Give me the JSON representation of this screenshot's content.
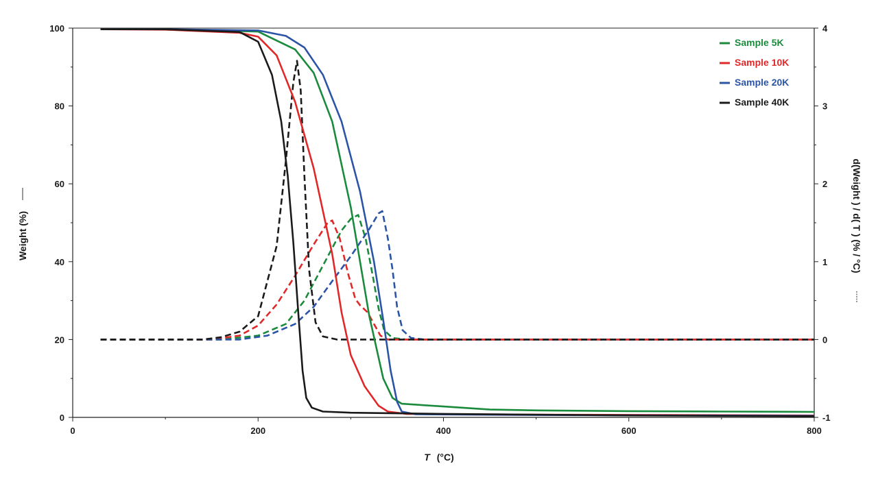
{
  "chart_data": {
    "type": "line",
    "xlabel_symbol": "T",
    "xlabel_unit": "(°C)",
    "ylabel_left": "Weight  (%)",
    "ylabel_right": "d(Weight ) / d( T )  (% / °C)",
    "xlim": [
      0,
      800
    ],
    "ylim_left": [
      0,
      100
    ],
    "ylim_right": [
      -1,
      4
    ],
    "x_ticks": [
      "0",
      "200",
      "400",
      "600",
      "800"
    ],
    "y_left_ticks": [
      "0",
      "20",
      "40",
      "60",
      "80",
      "100"
    ],
    "y_right_ticks": [
      "-1",
      "0",
      "1",
      "2",
      "3",
      "4"
    ],
    "grid": false,
    "legend_position": "top-right",
    "series": [
      {
        "name": "Sample 5K",
        "color": "#1a8a3c",
        "weight": [
          [
            30,
            99.7
          ],
          [
            100,
            99.7
          ],
          [
            200,
            99.1
          ],
          [
            240,
            94.5
          ],
          [
            260,
            88.5
          ],
          [
            280,
            76
          ],
          [
            300,
            54
          ],
          [
            320,
            26
          ],
          [
            335,
            10
          ],
          [
            345,
            5
          ],
          [
            355,
            3.5
          ],
          [
            400,
            2.8
          ],
          [
            450,
            2
          ],
          [
            500,
            1.8
          ],
          [
            600,
            1.6
          ],
          [
            700,
            1.5
          ],
          [
            800,
            1.4
          ]
        ],
        "derivative": [
          [
            30,
            0
          ],
          [
            160,
            0
          ],
          [
            200,
            0.05
          ],
          [
            230,
            0.2
          ],
          [
            250,
            0.5
          ],
          [
            270,
            0.95
          ],
          [
            290,
            1.4
          ],
          [
            300,
            1.55
          ],
          [
            308,
            1.6
          ],
          [
            316,
            1.3
          ],
          [
            324,
            0.8
          ],
          [
            330,
            0.4
          ],
          [
            336,
            0.12
          ],
          [
            345,
            0.02
          ],
          [
            360,
            0
          ],
          [
            800,
            0
          ]
        ]
      },
      {
        "name": "Sample 10K",
        "color": "#e02828",
        "weight": [
          [
            30,
            99.7
          ],
          [
            100,
            99.6
          ],
          [
            180,
            98.8
          ],
          [
            200,
            97.8
          ],
          [
            220,
            93
          ],
          [
            240,
            81
          ],
          [
            260,
            64
          ],
          [
            280,
            42
          ],
          [
            290,
            27
          ],
          [
            300,
            16
          ],
          [
            315,
            8
          ],
          [
            330,
            3
          ],
          [
            340,
            1.5
          ],
          [
            360,
            0.9
          ],
          [
            500,
            0.7
          ],
          [
            800,
            0.5
          ]
        ],
        "derivative": [
          [
            30,
            0
          ],
          [
            150,
            0
          ],
          [
            180,
            0.05
          ],
          [
            200,
            0.18
          ],
          [
            220,
            0.45
          ],
          [
            240,
            0.82
          ],
          [
            260,
            1.22
          ],
          [
            275,
            1.5
          ],
          [
            280,
            1.53
          ],
          [
            288,
            1.3
          ],
          [
            297,
            0.85
          ],
          [
            305,
            0.52
          ],
          [
            310,
            0.44
          ],
          [
            318,
            0.35
          ],
          [
            325,
            0.2
          ],
          [
            332,
            0.05
          ],
          [
            340,
            0
          ],
          [
            800,
            0
          ]
        ]
      },
      {
        "name": "Sample 20K",
        "color": "#2c54a6",
        "weight": [
          [
            30,
            99.7
          ],
          [
            100,
            99.7
          ],
          [
            200,
            99.4
          ],
          [
            230,
            98
          ],
          [
            250,
            95
          ],
          [
            270,
            88
          ],
          [
            290,
            76
          ],
          [
            310,
            58
          ],
          [
            325,
            40
          ],
          [
            335,
            25
          ],
          [
            343,
            12
          ],
          [
            350,
            4
          ],
          [
            355,
            1.5
          ],
          [
            370,
            0.8
          ],
          [
            500,
            0.6
          ],
          [
            800,
            0.4
          ]
        ],
        "derivative": [
          [
            30,
            0
          ],
          [
            180,
            0
          ],
          [
            210,
            0.05
          ],
          [
            240,
            0.2
          ],
          [
            260,
            0.42
          ],
          [
            280,
            0.75
          ],
          [
            300,
            1.07
          ],
          [
            320,
            1.42
          ],
          [
            330,
            1.62
          ],
          [
            334,
            1.65
          ],
          [
            340,
            1.3
          ],
          [
            345,
            0.9
          ],
          [
            350,
            0.42
          ],
          [
            356,
            0.12
          ],
          [
            365,
            0.02
          ],
          [
            380,
            0
          ],
          [
            800,
            0
          ]
        ]
      },
      {
        "name": "Sample 40K",
        "color": "#1a1a1a",
        "weight": [
          [
            30,
            99.7
          ],
          [
            100,
            99.7
          ],
          [
            180,
            99
          ],
          [
            200,
            96.5
          ],
          [
            215,
            88
          ],
          [
            225,
            76
          ],
          [
            232,
            62
          ],
          [
            238,
            45
          ],
          [
            243,
            28
          ],
          [
            248,
            12
          ],
          [
            252,
            5
          ],
          [
            258,
            2.5
          ],
          [
            270,
            1.5
          ],
          [
            300,
            1.2
          ],
          [
            400,
            0.9
          ],
          [
            600,
            0.5
          ],
          [
            800,
            0.3
          ]
        ],
        "derivative": [
          [
            30,
            0
          ],
          [
            140,
            0
          ],
          [
            160,
            0.03
          ],
          [
            180,
            0.1
          ],
          [
            200,
            0.3
          ],
          [
            220,
            1.2
          ],
          [
            230,
            2.3
          ],
          [
            238,
            3.3
          ],
          [
            242,
            3.58
          ],
          [
            246,
            3.2
          ],
          [
            250,
            2.1
          ],
          [
            255,
            0.9
          ],
          [
            262,
            0.22
          ],
          [
            270,
            0.04
          ],
          [
            285,
            0
          ],
          [
            800,
            0
          ]
        ]
      }
    ]
  }
}
